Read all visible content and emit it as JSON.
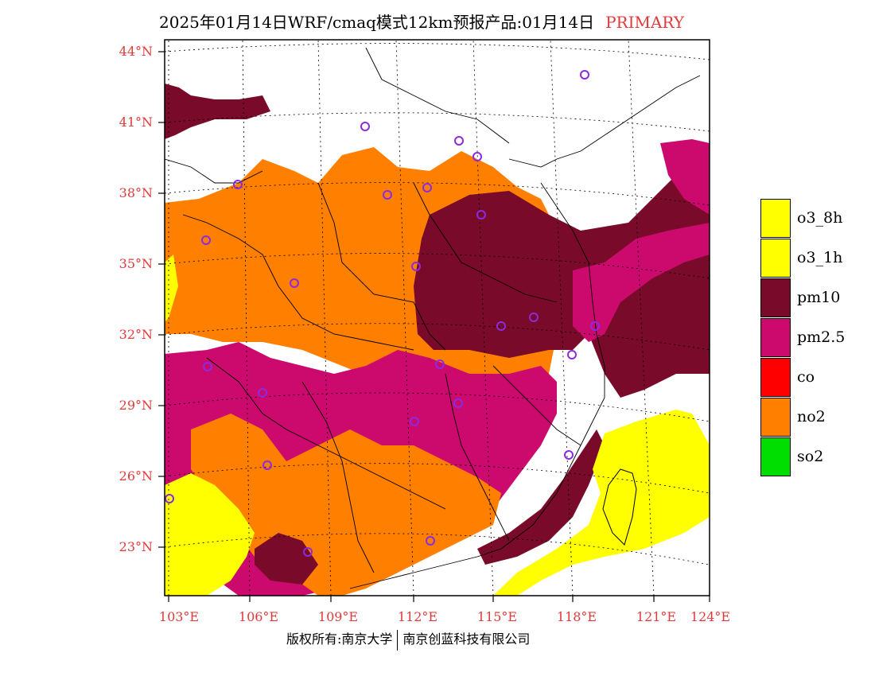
{
  "title": {
    "text": "2025年01月14日WRF/cmaq模式12km预报产品:01月14日",
    "tag": "PRIMARY"
  },
  "axes": {
    "lat_labels": [
      "44°N",
      "41°N",
      "38°N",
      "35°N",
      "32°N",
      "29°N",
      "26°N",
      "23°N"
    ],
    "lat_values": [
      44,
      41,
      38,
      35,
      32,
      29,
      26,
      23
    ],
    "lon_labels": [
      "103°E",
      "106°E",
      "109°E",
      "112°E",
      "115°E",
      "118°E",
      "121°E",
      "124°E"
    ],
    "lon_values": [
      103,
      106,
      109,
      112,
      115,
      118,
      121,
      124
    ],
    "lat_range": [
      21,
      45
    ],
    "lon_range": [
      103,
      124
    ],
    "grid": "dotted"
  },
  "legend": [
    {
      "label": "o3_8h",
      "color": "#ffff00"
    },
    {
      "label": "o3_1h",
      "color": "#ffff00"
    },
    {
      "label": "pm10",
      "color": "#7a0a2a"
    },
    {
      "label": "pm2.5",
      "color": "#cc0a6e"
    },
    {
      "label": "co",
      "color": "#ff0000"
    },
    {
      "label": "no2",
      "color": "#ff7f00"
    },
    {
      "label": "so2",
      "color": "#00dd00"
    }
  ],
  "footer": {
    "left": "版权所有:南京大学",
    "right": "南京创蓝科技有限公司"
  }
}
